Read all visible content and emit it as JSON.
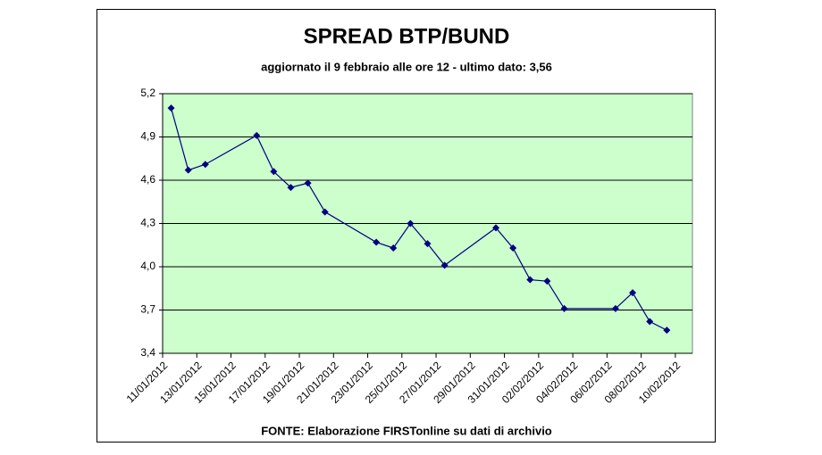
{
  "chart_data": {
    "type": "line",
    "title": "SPREAD BTP/BUND",
    "subtitle": "aggiornato il 9 febbraio alle ore 12 - ultimo dato: 3,56",
    "source": "FONTE: Elaborazione FIRSTonline su dati di archivio",
    "x": [
      "11/01/2012",
      "12/01/2012",
      "13/01/2012",
      "16/01/2012",
      "17/01/2012",
      "18/01/2012",
      "19/01/2012",
      "20/01/2012",
      "23/01/2012",
      "24/01/2012",
      "25/01/2012",
      "26/01/2012",
      "27/01/2012",
      "30/01/2012",
      "31/01/2012",
      "01/02/2012",
      "02/02/2012",
      "03/02/2012",
      "06/02/2012",
      "07/02/2012",
      "08/02/2012",
      "09/02/2012"
    ],
    "values": [
      5.1,
      4.67,
      4.71,
      4.91,
      4.66,
      4.55,
      4.58,
      4.38,
      4.17,
      4.13,
      4.3,
      4.16,
      4.01,
      4.27,
      4.13,
      3.91,
      3.9,
      3.71,
      3.71,
      3.82,
      3.62,
      3.56
    ],
    "color": "#000080",
    "xlim": [
      "11/01/2012",
      "10/02/2012"
    ],
    "xticks": [
      "11/01/2012",
      "13/01/2012",
      "15/01/2012",
      "17/01/2012",
      "19/01/2012",
      "21/01/2012",
      "23/01/2012",
      "25/01/2012",
      "27/01/2012",
      "29/01/2012",
      "31/01/2012",
      "02/02/2012",
      "04/02/2012",
      "06/02/2012",
      "08/02/2012",
      "10/02/2012"
    ],
    "ylim": [
      3.4,
      5.2
    ],
    "yticks": [
      {
        "value": 3.4,
        "label": "3,4"
      },
      {
        "value": 3.7,
        "label": "3,7"
      },
      {
        "value": 4.0,
        "label": "4,0"
      },
      {
        "value": 4.3,
        "label": "4,3"
      },
      {
        "value": 4.6,
        "label": "4,6"
      },
      {
        "value": 4.9,
        "label": "4,9"
      },
      {
        "value": 5.2,
        "label": "5,2"
      }
    ],
    "grid": true,
    "plot_background": "#ccffcc"
  }
}
